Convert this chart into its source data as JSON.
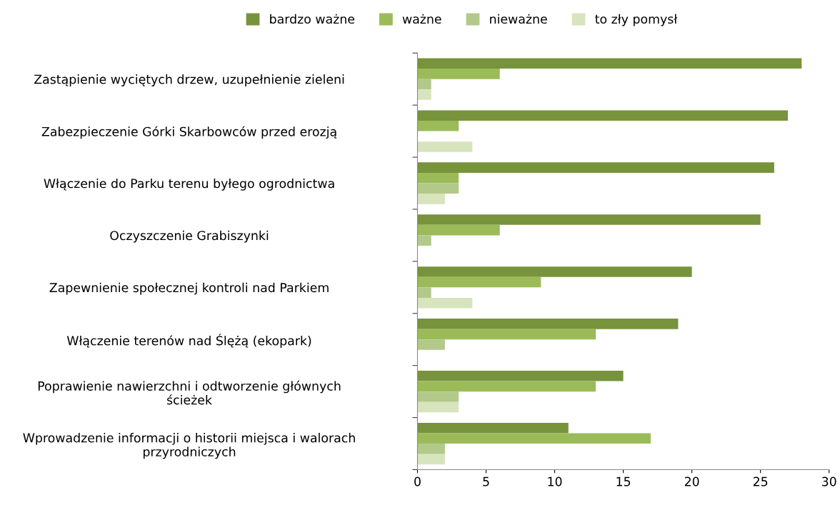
{
  "chart_data": {
    "type": "bar",
    "orientation": "horizontal",
    "legend": "top",
    "categories": [
      "Zastąpienie wyciętych drzew, uzupełnienie zieleni",
      "Zabezpieczenie Górki Skarbowców przed erozją",
      "Włączenie do Parku terenu byłego ogrodnictwa",
      "Oczyszczenie Grabiszynki",
      "Zapewnienie społecznej kontroli nad Parkiem",
      "Włączenie terenów nad Ślężą (ekopark)",
      "Poprawienie nawierzchni i odtworzenie głównych\nścieżek",
      "Wprowadzenie informacji o historii miejsca i walorach\nprzyrodniczych"
    ],
    "series": [
      {
        "name": "bardzo ważne",
        "color": "#77933c",
        "values": [
          28,
          27,
          26,
          25,
          20,
          19,
          15,
          11
        ]
      },
      {
        "name": "ważne",
        "color": "#9bbb59",
        "values": [
          6,
          3,
          3,
          6,
          9,
          13,
          13,
          17
        ]
      },
      {
        "name": "nieważne",
        "color": "#b3c98a",
        "values": [
          1,
          0,
          3,
          1,
          1,
          2,
          3,
          2
        ]
      },
      {
        "name": "to zły pomysł",
        "color": "#d7e4bd",
        "values": [
          1,
          4,
          2,
          0,
          4,
          0,
          3,
          2
        ]
      }
    ],
    "xlim": [
      0,
      30
    ],
    "xticks": [
      0,
      5,
      10,
      15,
      20,
      25,
      30
    ],
    "grid": false
  }
}
